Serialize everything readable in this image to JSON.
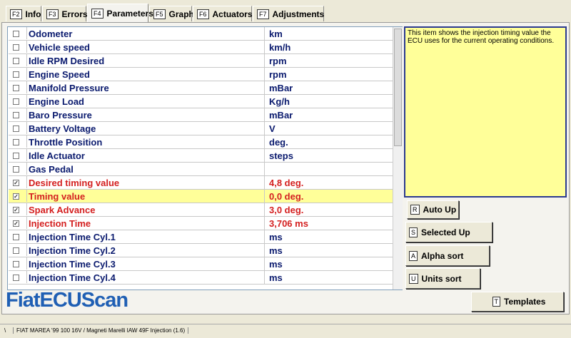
{
  "tabs": [
    {
      "key": "F2",
      "label": "Info"
    },
    {
      "key": "F3",
      "label": "Errors"
    },
    {
      "key": "F4",
      "label": "Parameters"
    },
    {
      "key": "F5",
      "label": "Graph"
    },
    {
      "key": "F6",
      "label": "Actuators"
    },
    {
      "key": "F7",
      "label": "Adjustments"
    }
  ],
  "active_tab": 2,
  "table": {
    "selected_row": 12,
    "rows": [
      {
        "checked": false,
        "name": "Odometer",
        "value": "km"
      },
      {
        "checked": false,
        "name": "Vehicle speed",
        "value": "km/h"
      },
      {
        "checked": false,
        "name": "Idle RPM Desired",
        "value": "rpm"
      },
      {
        "checked": false,
        "name": "Engine Speed",
        "value": "rpm"
      },
      {
        "checked": false,
        "name": "Manifold Pressure",
        "value": "mBar"
      },
      {
        "checked": false,
        "name": "Engine Load",
        "value": "Kg/h"
      },
      {
        "checked": false,
        "name": "Baro Pressure",
        "value": "mBar"
      },
      {
        "checked": false,
        "name": "Battery Voltage",
        "value": "V"
      },
      {
        "checked": false,
        "name": "Throttle Position",
        "value": "deg."
      },
      {
        "checked": false,
        "name": "Idle Actuator",
        "value": "steps"
      },
      {
        "checked": false,
        "name": "Gas Pedal"
      },
      {
        "checked": true,
        "name": "Desired timing value",
        "value": "4,8 deg."
      },
      {
        "checked": true,
        "name": "Timing value",
        "value": "0,0 deg."
      },
      {
        "checked": true,
        "name": "Spark Advance",
        "value": "3,0 deg."
      },
      {
        "checked": true,
        "name": "Injection Time",
        "value": "3,706 ms"
      },
      {
        "checked": false,
        "name": "Injection Time Cyl.1",
        "value": "ms"
      },
      {
        "checked": false,
        "name": "Injection Time Cyl.2",
        "value": "ms"
      },
      {
        "checked": false,
        "name": "Injection Time Cyl.3",
        "value": "ms"
      },
      {
        "checked": false,
        "name": "Injection Time Cyl.4",
        "value": "ms"
      }
    ]
  },
  "description": "This item shows the injection timing value the ECU uses for the current operating conditions.",
  "buttons": [
    {
      "key": "R",
      "label": "Auto Up"
    },
    {
      "key": "S",
      "label": "Selected Up"
    },
    {
      "key": "A",
      "label": "Alpha sort"
    },
    {
      "key": "U",
      "label": "Units sort"
    },
    {
      "key": "T",
      "label": "Templates"
    }
  ],
  "logo": "FiatECUScan",
  "status": {
    "left": "\\",
    "text": "FIAT MAREA '99 100 16V / Magneti Marelli IAW 49F Injection (1.6)"
  }
}
